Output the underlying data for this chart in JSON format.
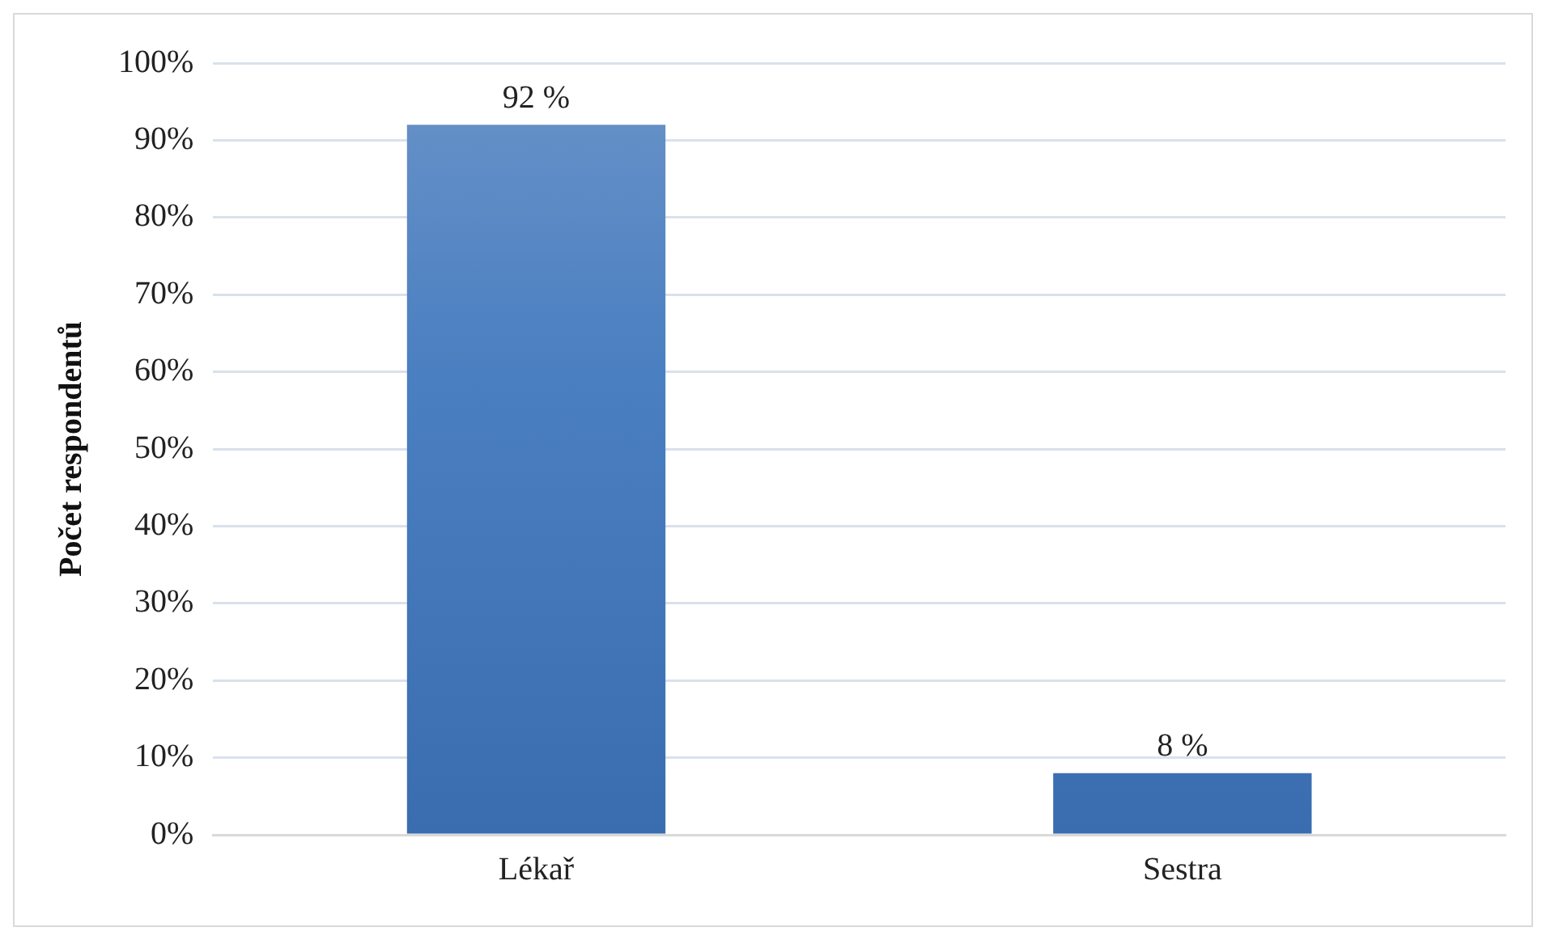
{
  "chart_data": {
    "type": "bar",
    "ylabel": "Počet respondentů",
    "categories": [
      "Lékař",
      "Sestra"
    ],
    "values": [
      92,
      8
    ],
    "color": "#4a7fc1",
    "value_labels": [
      "92 %",
      "8 %"
    ],
    "ylim": [
      0,
      100
    ],
    "yticks": [
      {
        "value": 0,
        "label": "0%"
      },
      {
        "value": 10,
        "label": "10%"
      },
      {
        "value": 20,
        "label": "20%"
      },
      {
        "value": 30,
        "label": "30%"
      },
      {
        "value": 40,
        "label": "40%"
      },
      {
        "value": 50,
        "label": "50%"
      },
      {
        "value": 60,
        "label": "60%"
      },
      {
        "value": 70,
        "label": "70%"
      },
      {
        "value": 80,
        "label": "80%"
      },
      {
        "value": 90,
        "label": "90%"
      },
      {
        "value": 100,
        "label": "100%"
      }
    ],
    "grid": "y",
    "legend": false
  }
}
